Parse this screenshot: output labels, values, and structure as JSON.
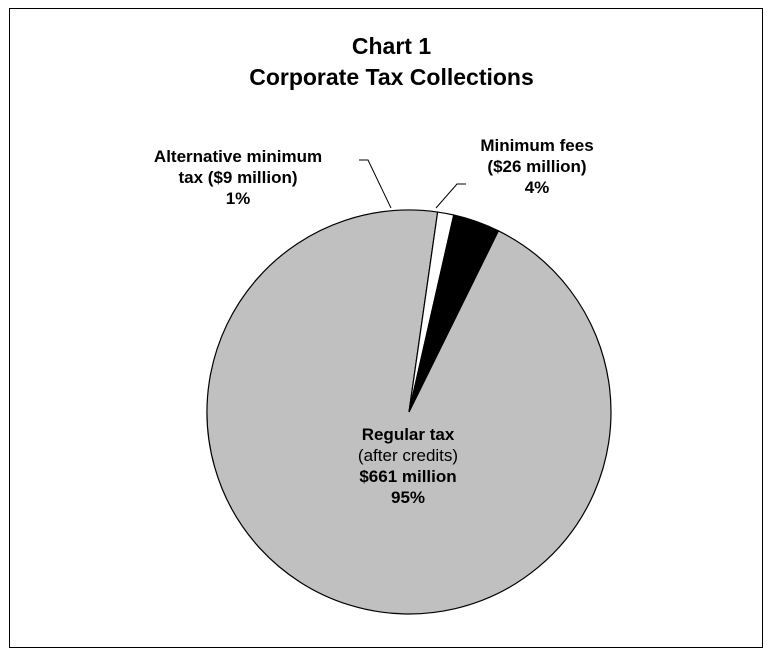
{
  "chart_data": {
    "type": "pie",
    "title": "Chart 1",
    "subtitle": "Corporate Tax Collections",
    "slices": [
      {
        "name": "Regular tax",
        "qualifier": "(after credits)",
        "amount_label": "$661 million",
        "value": 661,
        "percent": 95,
        "percent_label": "95%",
        "color": "#c0c0c0"
      },
      {
        "name_line1": "Alternative minimum",
        "name_line2": "tax ($9 million)",
        "value": 9,
        "percent": 1,
        "percent_label": "1%",
        "color": "#ffffff"
      },
      {
        "name_line1": "Minimum fees",
        "name_line2": "($26 million)",
        "value": 26,
        "percent": 4,
        "percent_label": "4%",
        "color": "#000000"
      }
    ]
  }
}
